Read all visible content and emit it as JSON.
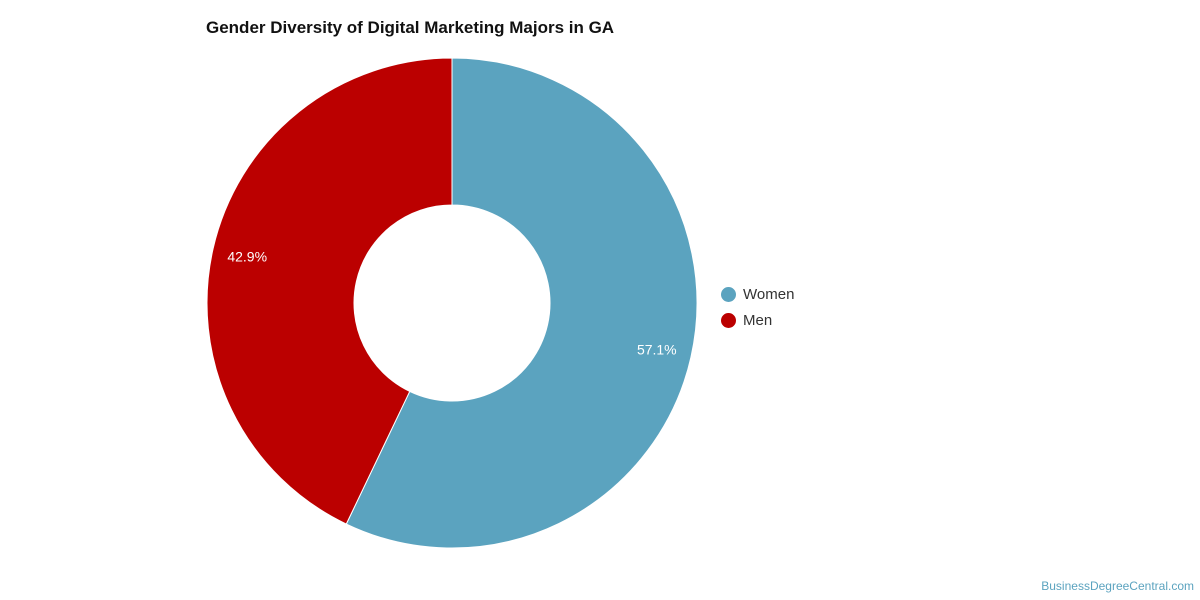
{
  "chart_data": {
    "type": "pie",
    "variant": "donut",
    "title": "Gender Diversity of Digital Marketing Majors in GA",
    "slices": [
      {
        "label": "Women",
        "value": 57.1,
        "display": "57.1%",
        "color": "#5ba3bf"
      },
      {
        "label": "Men",
        "value": 42.9,
        "display": "42.9%",
        "color": "#bb0000"
      }
    ],
    "legend_placement": "right"
  },
  "credit": "BusinessDegreeCentral.com"
}
